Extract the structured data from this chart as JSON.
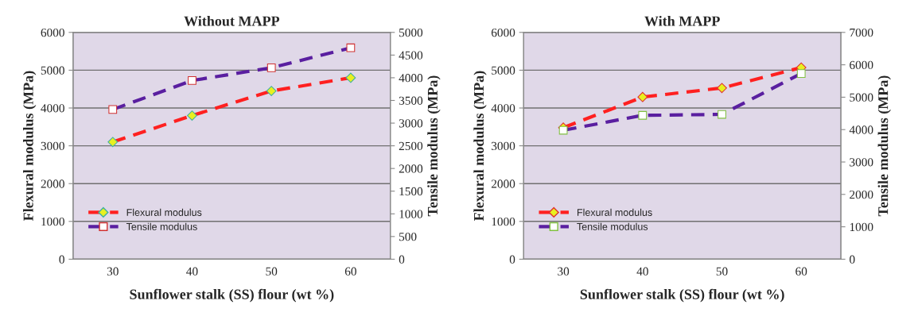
{
  "chart_data": [
    {
      "type": "line",
      "title": "Without MAPP",
      "xlabel": "Sunflower stalk (SS) flour (wt %)",
      "ylabel": "Flexural modulus (MPa)",
      "y2label": "Tensile modulus (MPa)",
      "categories": [
        "30",
        "40",
        "50",
        "60"
      ],
      "series": [
        {
          "name": "Flexural modulus",
          "color": "#ff2020",
          "marker": "diamond",
          "values": [
            3100,
            3800,
            4450,
            4800
          ]
        },
        {
          "name": "Tensile modulus",
          "color": "#5a1fa0",
          "marker": "square",
          "axis": "y2",
          "values": [
            3300,
            3940,
            4220,
            4660
          ]
        }
      ],
      "ylim": [
        0,
        6000
      ],
      "yticks": [
        0,
        1000,
        2000,
        3000,
        4000,
        5000,
        6000
      ],
      "y2lim": [
        0,
        5000
      ],
      "y2ticks": [
        0,
        500,
        1000,
        1500,
        2000,
        2500,
        3000,
        3500,
        4000,
        4500,
        5000
      ],
      "grid": "y",
      "legend": "bottom left",
      "line_style": "dashed"
    },
    {
      "type": "line",
      "title": "With MAPP",
      "xlabel": "Sunflower stalk (SS) flour (wt %)",
      "ylabel": "Flexural modulus (MPa)",
      "y2label": "Tensile modulus (MPa)",
      "categories": [
        "30",
        "40",
        "50",
        "60"
      ],
      "series": [
        {
          "name": "Flexural modulus",
          "color": "#ff2020",
          "marker": "diamond",
          "values": [
            3480,
            4290,
            4530,
            5070
          ]
        },
        {
          "name": "Tensile modulus",
          "color": "#5a1fa0",
          "marker": "square",
          "axis": "y2",
          "values": [
            3980,
            4440,
            4470,
            5730
          ]
        }
      ],
      "ylim": [
        0,
        6000
      ],
      "yticks": [
        0,
        1000,
        2000,
        3000,
        4000,
        5000,
        6000
      ],
      "y2lim": [
        0,
        7000
      ],
      "y2ticks": [
        0,
        1000,
        2000,
        3000,
        4000,
        5000,
        6000,
        7000
      ],
      "grid": "y",
      "legend": "bottom left",
      "line_style": "dashed"
    }
  ]
}
